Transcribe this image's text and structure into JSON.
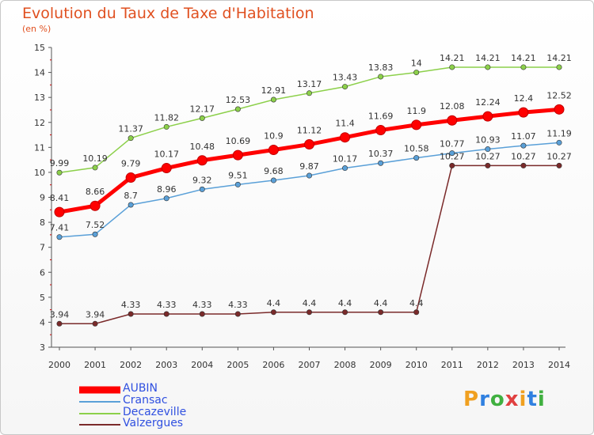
{
  "title": "Evolution du Taux de Taxe d'Habitation",
  "subtitle": "(en %)",
  "logo_text": "Proxiti",
  "chart_data": {
    "type": "line",
    "x": [
      "2000",
      "2001",
      "2002",
      "2003",
      "2004",
      "2005",
      "2006",
      "2007",
      "2008",
      "2009",
      "2010",
      "2011",
      "2012",
      "2013",
      "2014"
    ],
    "ylim": [
      3,
      15
    ],
    "yticks": [
      "3",
      "4",
      "5",
      "6",
      "7",
      "8",
      "9",
      "10",
      "11",
      "12",
      "13",
      "14",
      "15"
    ],
    "grid": false,
    "legend_position": "bottom-left",
    "series": [
      {
        "name": "AUBIN",
        "color": "#ff0000",
        "values": [
          8.41,
          8.66,
          9.79,
          10.17,
          10.48,
          10.69,
          10.9,
          11.12,
          11.4,
          11.69,
          11.9,
          12.08,
          12.24,
          12.4,
          12.52
        ],
        "labels": [
          "8.41",
          "8.66",
          "9.79",
          "10.17",
          "10.48",
          "10.69",
          "10.9",
          "11.12",
          "11.4",
          "11.69",
          "11.9",
          "12.08",
          "12.24",
          "12.4",
          "12.52"
        ]
      },
      {
        "name": "Cransac",
        "color": "#5aa0d8",
        "values": [
          7.41,
          7.52,
          8.7,
          8.96,
          9.32,
          9.51,
          9.68,
          9.87,
          10.17,
          10.37,
          10.58,
          10.77,
          10.93,
          11.07,
          11.19
        ],
        "labels": [
          "7.41",
          "7.52",
          "8.7",
          "8.96",
          "9.32",
          "9.51",
          "9.68",
          "9.87",
          "10.17",
          "10.37",
          "10.58",
          "10.77",
          "10.93",
          "11.07",
          "11.19"
        ]
      },
      {
        "name": "Decazeville",
        "color": "#8cd04a",
        "values": [
          9.99,
          10.19,
          11.37,
          11.82,
          12.17,
          12.53,
          12.91,
          13.17,
          13.43,
          13.83,
          14,
          14.21,
          14.21,
          14.21,
          14.21
        ],
        "labels": [
          "9.99",
          "10.19",
          "11.37",
          "11.82",
          "12.17",
          "12.53",
          "12.91",
          "13.17",
          "13.43",
          "13.83",
          "14",
          "14.21",
          "14.21",
          "14.21",
          "14.21"
        ]
      },
      {
        "name": "Valzergues",
        "color": "#7a2a2a",
        "values": [
          3.94,
          3.94,
          4.33,
          4.33,
          4.33,
          4.33,
          4.4,
          4.4,
          4.4,
          4.4,
          4.4,
          10.27,
          10.27,
          10.27,
          10.27
        ],
        "labels": [
          "3.94",
          "3.94",
          "4.33",
          "4.33",
          "4.33",
          "4.33",
          "4.4",
          "4.4",
          "4.4",
          "4.4",
          "4.4",
          "10.27",
          "10.27",
          "10.27",
          "10.27"
        ]
      }
    ]
  }
}
